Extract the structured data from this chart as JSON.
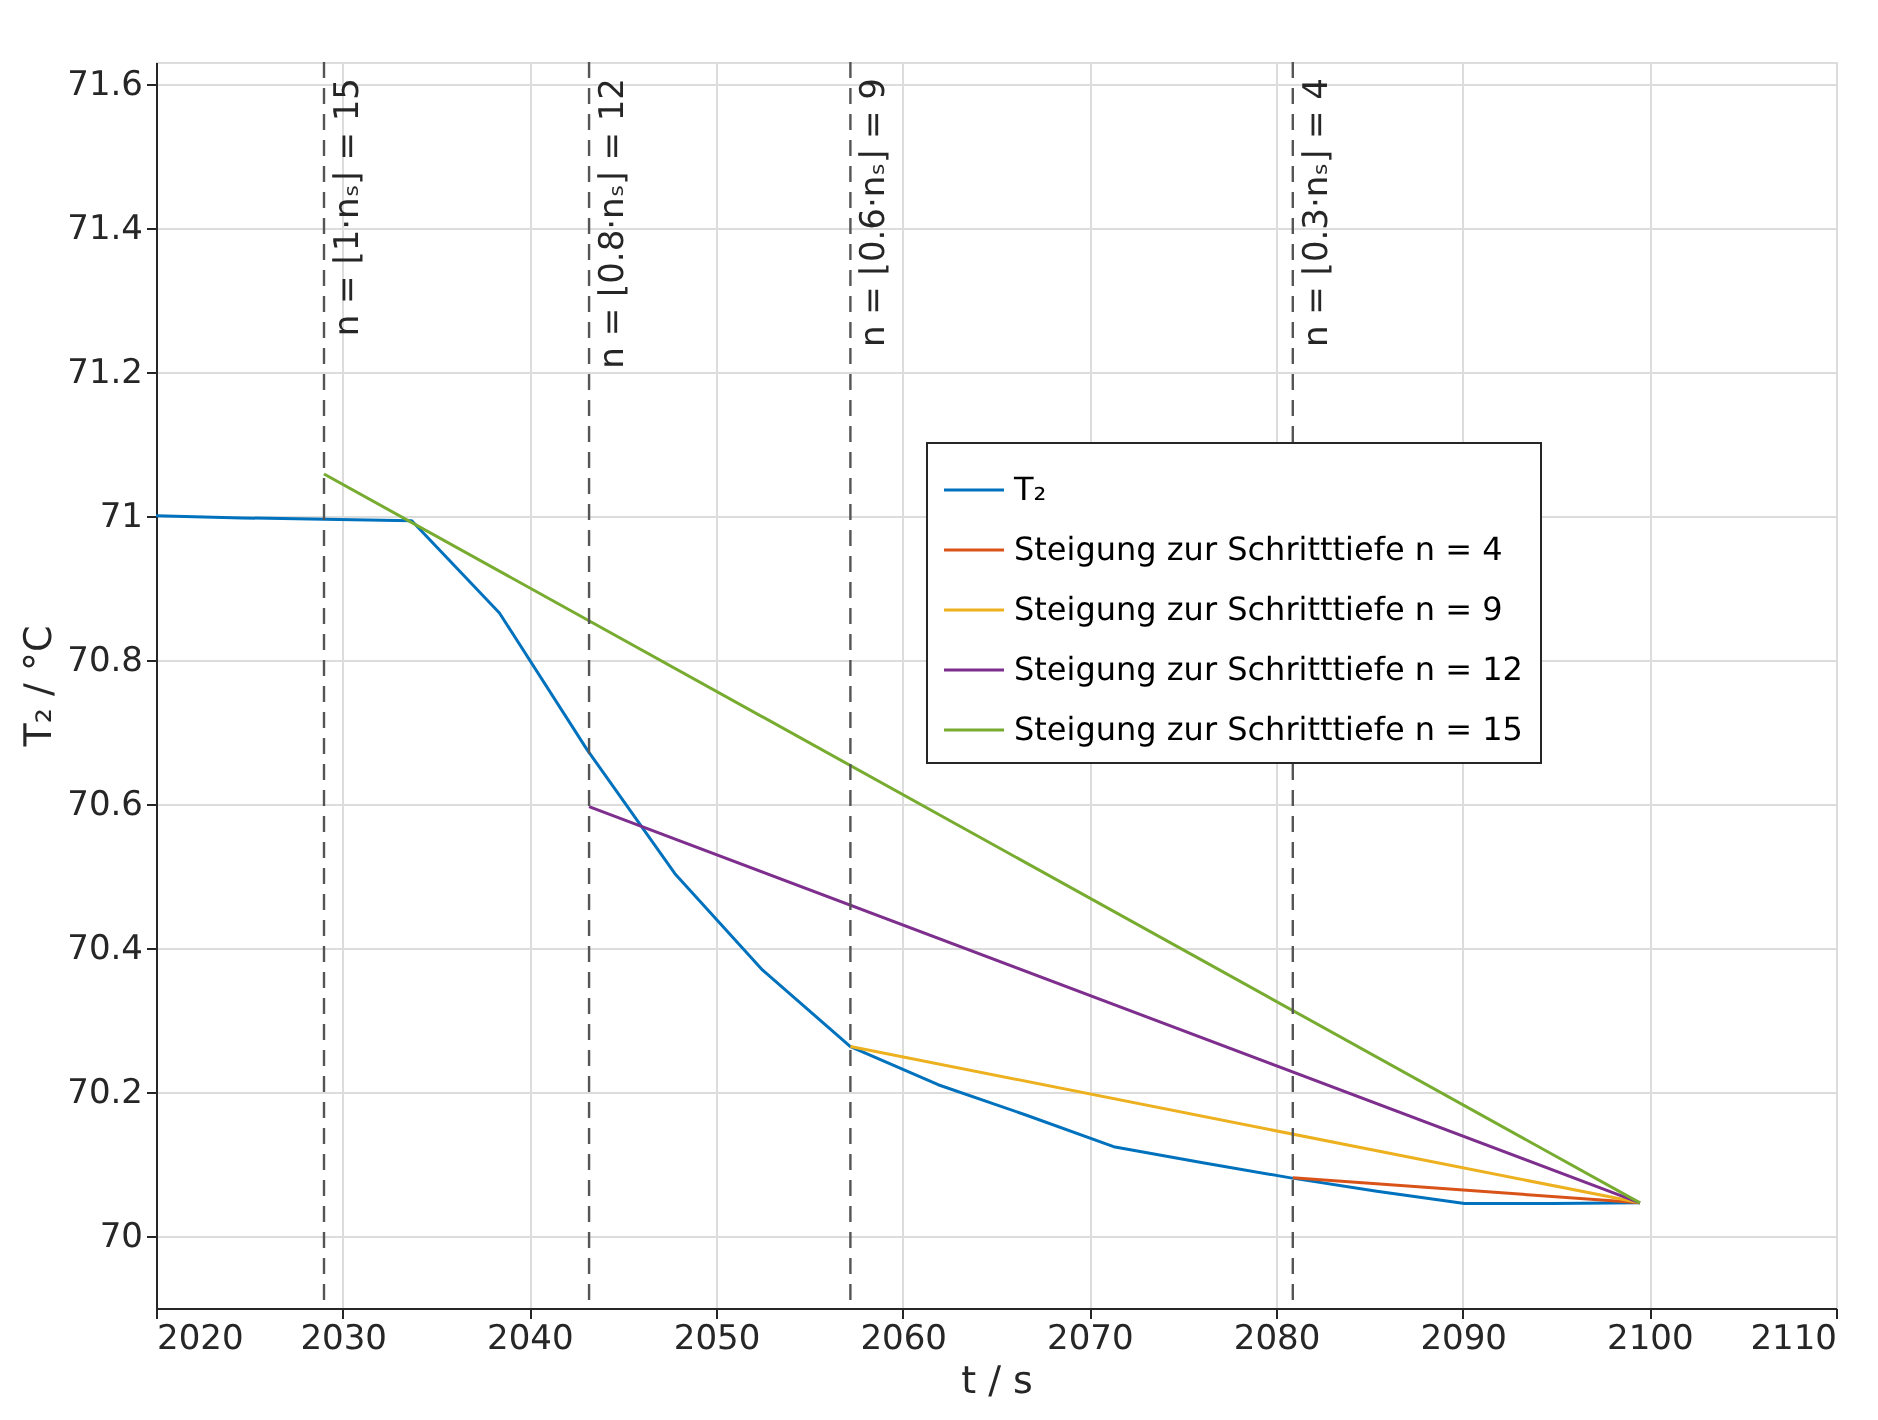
{
  "chart_data": {
    "type": "line",
    "xlabel": "t / s",
    "ylabel": "T₂ / °C",
    "xlim": [
      2020,
      2110
    ],
    "xticks": [
      2020,
      2030,
      2040,
      2050,
      2060,
      2070,
      2080,
      2090,
      2100,
      2110
    ],
    "ylim": [
      69.9,
      71.63
    ],
    "yticks": [
      70,
      70.2,
      70.4,
      70.6,
      70.8,
      71,
      71.2,
      71.4,
      71.6
    ],
    "grid": true,
    "legend": "top right",
    "line_style": "solid",
    "marker": "none",
    "series": [
      {
        "name": "T₂",
        "color": "#0072bd",
        "x": [
          2020,
          2024.6,
          2029.0,
          2033.7,
          2038.4,
          2043.1,
          2047.8,
          2052.5,
          2057.2,
          2061.9,
          2066.6,
          2071.3,
          2076.0,
          2080.7,
          2085.4,
          2090.1,
          2094.8,
          2099.5
        ],
        "values": [
          71.0,
          70.997,
          70.995,
          70.993,
          70.865,
          70.675,
          70.503,
          70.369,
          70.263,
          70.21,
          70.168,
          70.124,
          70.102,
          70.081,
          70.062,
          70.045,
          70.045,
          70.046
        ]
      },
      {
        "name": "Steigung zur Schritttiefe n = 4",
        "color": "#d95319",
        "x": [
          2080.9,
          2099.5
        ],
        "values": [
          70.081,
          70.046
        ]
      },
      {
        "name": "Steigung zur Schritttiefe n = 9",
        "color": "#edb120",
        "x": [
          2057.2,
          2099.5
        ],
        "values": [
          70.263,
          70.046
        ]
      },
      {
        "name": "Steigung zur Schritttiefe n = 12",
        "color": "#7e2f8e",
        "x": [
          2043.2,
          2099.5
        ],
        "values": [
          70.596,
          70.046
        ]
      },
      {
        "name": "Steigung zur Schritttiefe n = 15",
        "color": "#77ac30",
        "x": [
          2029.0,
          2099.5
        ],
        "values": [
          71.058,
          70.046
        ]
      }
    ],
    "ref_lines": [
      {
        "axis": "x",
        "value": 2029.0,
        "color": "#555555",
        "line_style": "dashed"
      },
      {
        "axis": "x",
        "value": 2043.2,
        "color": "#555555",
        "line_style": "dashed"
      },
      {
        "axis": "x",
        "value": 2057.2,
        "color": "#555555",
        "line_style": "dashed"
      },
      {
        "axis": "x",
        "value": 2080.9,
        "color": "#555555",
        "line_style": "dashed"
      }
    ],
    "annotations": [
      {
        "text": "n = ⌊1·nₛ⌋ = 15",
        "x": 2029.0,
        "y": 71.63
      },
      {
        "text": "n = ⌊0.8·nₛ⌋ = 12",
        "x": 2043.2,
        "y": 71.63
      },
      {
        "text": "n = ⌊0.6·nₛ⌋ = 9",
        "x": 2057.2,
        "y": 71.63
      },
      {
        "text": "n = ⌊0.3·nₛ⌋ = 4",
        "x": 2080.9,
        "y": 71.63
      }
    ]
  }
}
